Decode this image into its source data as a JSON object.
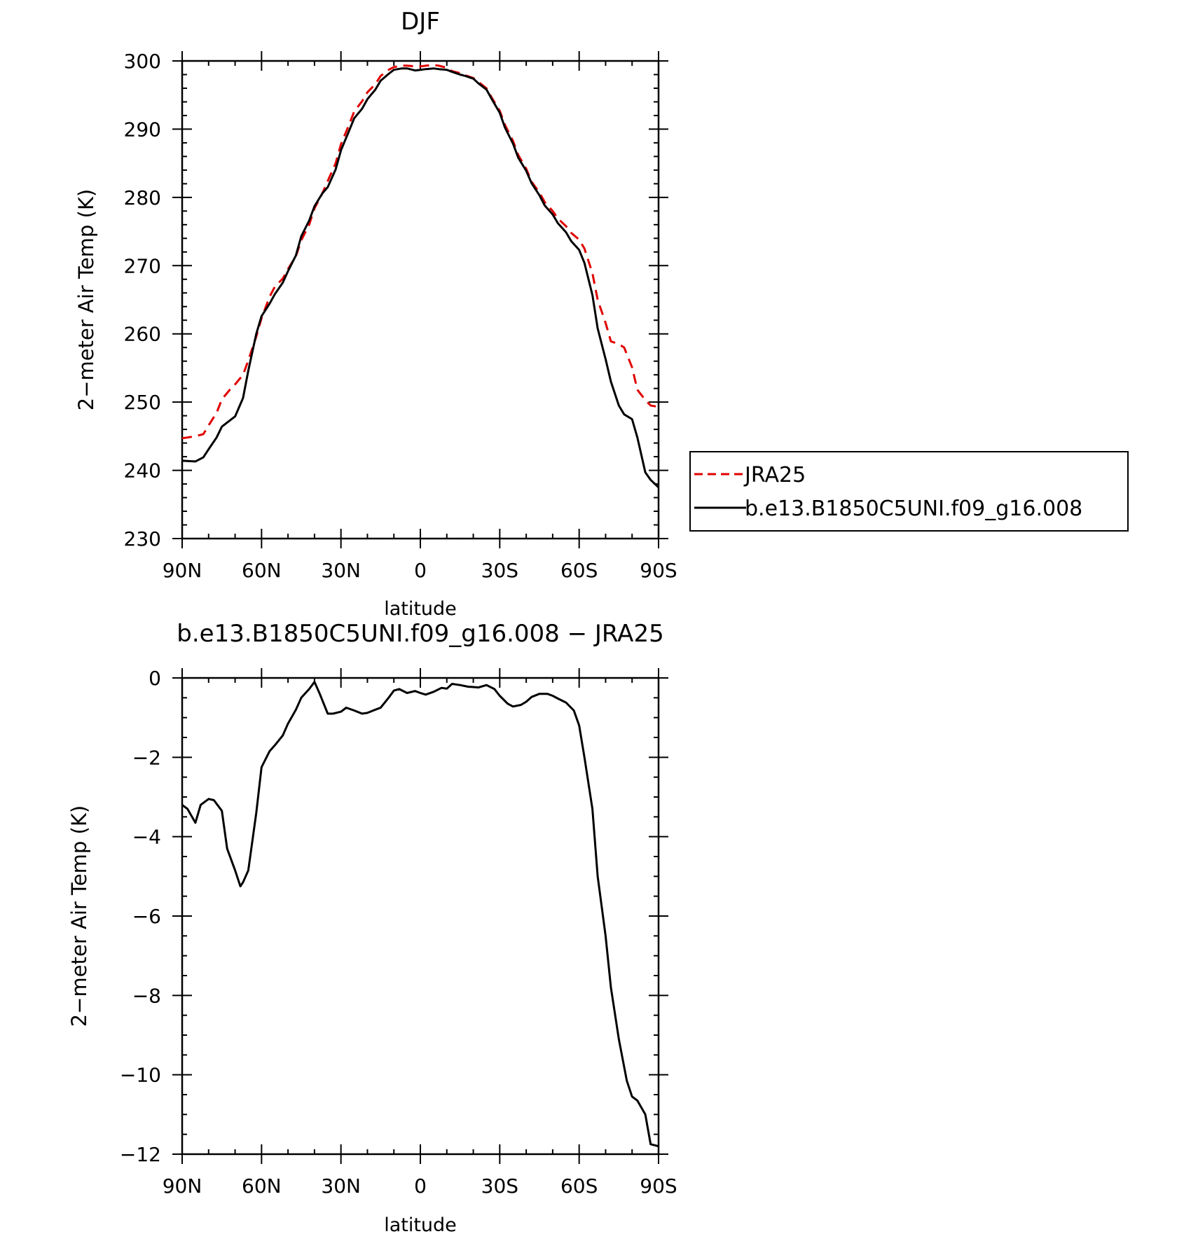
{
  "chart_data": [
    {
      "type": "line",
      "title": "DJF",
      "xlabel": "latitude",
      "ylabel": "2−meter Air Temp (K)",
      "xlim": [
        90,
        -90
      ],
      "ylim": [
        230,
        300
      ],
      "x_ticks": [
        {
          "value": 90,
          "label": "90N"
        },
        {
          "value": 60,
          "label": "60N"
        },
        {
          "value": 30,
          "label": "30N"
        },
        {
          "value": 0,
          "label": "0"
        },
        {
          "value": -30,
          "label": "30S"
        },
        {
          "value": -60,
          "label": "60S"
        },
        {
          "value": -90,
          "label": "90S"
        }
      ],
      "y_ticks": [
        {
          "value": 300,
          "label": "300"
        },
        {
          "value": 290,
          "label": "290"
        },
        {
          "value": 280,
          "label": "280"
        },
        {
          "value": 270,
          "label": "270"
        },
        {
          "value": 260,
          "label": "260"
        },
        {
          "value": 250,
          "label": "250"
        },
        {
          "value": 240,
          "label": "240"
        },
        {
          "value": 230,
          "label": "230"
        }
      ],
      "legend": {
        "placement": "right"
      },
      "series": [
        {
          "name": "JRA25",
          "color": "#e00000",
          "dash": "dashed",
          "x": [
            90,
            85,
            82,
            80,
            77,
            75,
            72,
            70,
            67,
            65,
            62,
            60,
            57,
            55,
            52,
            50,
            47,
            45,
            42,
            40,
            37,
            35,
            32,
            30,
            27,
            25,
            22,
            20,
            17,
            15,
            12,
            10,
            7,
            5,
            2,
            0,
            -2,
            -5,
            -7,
            -10,
            -12,
            -15,
            -17,
            -20,
            -22,
            -25,
            -27,
            -30,
            -32,
            -35,
            -37,
            -40,
            -42,
            -45,
            -47,
            -50,
            -52,
            -55,
            -57,
            -60,
            -62,
            -65,
            -67,
            -70,
            -72,
            -75,
            -77,
            -80,
            -82,
            -85,
            -87,
            -90
          ],
          "y": [
            244.7,
            245.0,
            245.3,
            246.6,
            248.4,
            250.4,
            251.8,
            252.6,
            254.0,
            256.1,
            259.6,
            262.3,
            265.4,
            266.9,
            268.1,
            269.5,
            271.4,
            273.7,
            276.0,
            278.4,
            280.6,
            282.4,
            285.0,
            287.8,
            290.6,
            292.6,
            294.1,
            295.4,
            296.6,
            297.8,
            298.7,
            299.1,
            299.3,
            299.3,
            299.2,
            299.2,
            299.3,
            299.4,
            299.3,
            299.0,
            298.5,
            298.2,
            297.9,
            297.5,
            296.9,
            296.0,
            294.6,
            292.7,
            290.6,
            288.3,
            286.2,
            284.2,
            282.3,
            280.7,
            279.3,
            278.0,
            276.9,
            275.8,
            274.8,
            273.8,
            272.5,
            268.9,
            265.0,
            261.6,
            258.9,
            258.5,
            258.0,
            255.1,
            251.8,
            250.3,
            249.5,
            249.3
          ]
        },
        {
          "name": "b.e13.B1850C5UNI.f09_g16.008",
          "color": "#000000",
          "dash": "solid",
          "x": [
            90,
            85,
            82,
            80,
            77,
            75,
            72,
            70,
            67,
            65,
            62,
            60,
            57,
            55,
            52,
            50,
            47,
            45,
            42,
            40,
            37,
            35,
            32,
            30,
            27,
            25,
            22,
            20,
            17,
            15,
            12,
            10,
            7,
            5,
            2,
            0,
            -2,
            -5,
            -7,
            -10,
            -12,
            -15,
            -17,
            -20,
            -22,
            -25,
            -27,
            -30,
            -32,
            -35,
            -37,
            -40,
            -42,
            -45,
            -47,
            -50,
            -52,
            -55,
            -57,
            -60,
            -62,
            -65,
            -67,
            -70,
            -72,
            -75,
            -77,
            -80,
            -82,
            -85,
            -87,
            -90
          ],
          "y": [
            241.4,
            241.3,
            241.9,
            243.1,
            244.8,
            246.4,
            247.3,
            247.9,
            250.6,
            254.6,
            260.0,
            262.6,
            264.4,
            265.8,
            267.5,
            269.2,
            271.5,
            274.3,
            276.6,
            278.7,
            280.6,
            281.5,
            284.1,
            286.9,
            289.7,
            291.6,
            293.0,
            294.4,
            295.8,
            297.1,
            298.1,
            298.7,
            298.9,
            298.9,
            298.6,
            298.7,
            298.8,
            298.9,
            298.8,
            298.7,
            298.4,
            298.0,
            297.8,
            297.4,
            296.7,
            295.8,
            294.4,
            292.4,
            290.2,
            287.9,
            285.8,
            283.9,
            282.1,
            280.3,
            278.8,
            277.5,
            276.2,
            274.9,
            273.6,
            272.3,
            270.4,
            265.7,
            260.8,
            256.3,
            253.0,
            249.5,
            248.2,
            247.5,
            244.8,
            239.7,
            238.6,
            237.5
          ]
        }
      ]
    },
    {
      "type": "line",
      "title": "b.e13.B1850C5UNI.f09_g16.008 − JRA25",
      "xlabel": "latitude",
      "ylabel": "2−meter Air Temp (K)",
      "xlim": [
        90,
        -90
      ],
      "ylim": [
        -12,
        0
      ],
      "x_ticks": [
        {
          "value": 90,
          "label": "90N"
        },
        {
          "value": 60,
          "label": "60N"
        },
        {
          "value": 30,
          "label": "30N"
        },
        {
          "value": 0,
          "label": "0"
        },
        {
          "value": -30,
          "label": "30S"
        },
        {
          "value": -60,
          "label": "60S"
        },
        {
          "value": -90,
          "label": "90S"
        }
      ],
      "y_ticks": [
        {
          "value": 0,
          "label": "0"
        },
        {
          "value": -2,
          "label": "−2"
        },
        {
          "value": -4,
          "label": "−4"
        },
        {
          "value": -6,
          "label": "−6"
        },
        {
          "value": -8,
          "label": "−8"
        },
        {
          "value": -10,
          "label": "−10"
        },
        {
          "value": -12,
          "label": "−12"
        }
      ],
      "series": [
        {
          "color": "#000000",
          "dash": "solid",
          "x": [
            90,
            88,
            85,
            83,
            80,
            78,
            75,
            73,
            70,
            68,
            67,
            65,
            62,
            60,
            57,
            55,
            52,
            50,
            47,
            45,
            42,
            40,
            38,
            35,
            33,
            30,
            28,
            25,
            22,
            20,
            17,
            15,
            12,
            10,
            8,
            5,
            2,
            0,
            -2,
            -5,
            -8,
            -10,
            -12,
            -15,
            -18,
            -20,
            -22,
            -25,
            -28,
            -30,
            -33,
            -35,
            -38,
            -40,
            -42,
            -45,
            -48,
            -50,
            -52,
            -55,
            -58,
            -60,
            -62,
            -65,
            -67,
            -70,
            -72,
            -75,
            -78,
            -80,
            -82,
            -85,
            -87,
            -90
          ],
          "y": [
            -3.2,
            -3.3,
            -3.65,
            -3.2,
            -3.05,
            -3.08,
            -3.35,
            -4.3,
            -4.85,
            -5.25,
            -5.15,
            -4.85,
            -3.4,
            -2.25,
            -1.85,
            -1.7,
            -1.45,
            -1.15,
            -0.8,
            -0.5,
            -0.28,
            -0.1,
            -0.4,
            -0.9,
            -0.9,
            -0.85,
            -0.75,
            -0.82,
            -0.9,
            -0.88,
            -0.8,
            -0.75,
            -0.5,
            -0.32,
            -0.28,
            -0.38,
            -0.33,
            -0.38,
            -0.42,
            -0.35,
            -0.25,
            -0.27,
            -0.15,
            -0.18,
            -0.22,
            -0.23,
            -0.24,
            -0.18,
            -0.28,
            -0.45,
            -0.65,
            -0.72,
            -0.68,
            -0.6,
            -0.48,
            -0.4,
            -0.4,
            -0.45,
            -0.52,
            -0.62,
            -0.82,
            -1.2,
            -2.0,
            -3.3,
            -5.0,
            -6.5,
            -7.8,
            -9.1,
            -10.15,
            -10.55,
            -10.65,
            -11.0,
            -11.75,
            -11.8
          ]
        }
      ]
    }
  ]
}
